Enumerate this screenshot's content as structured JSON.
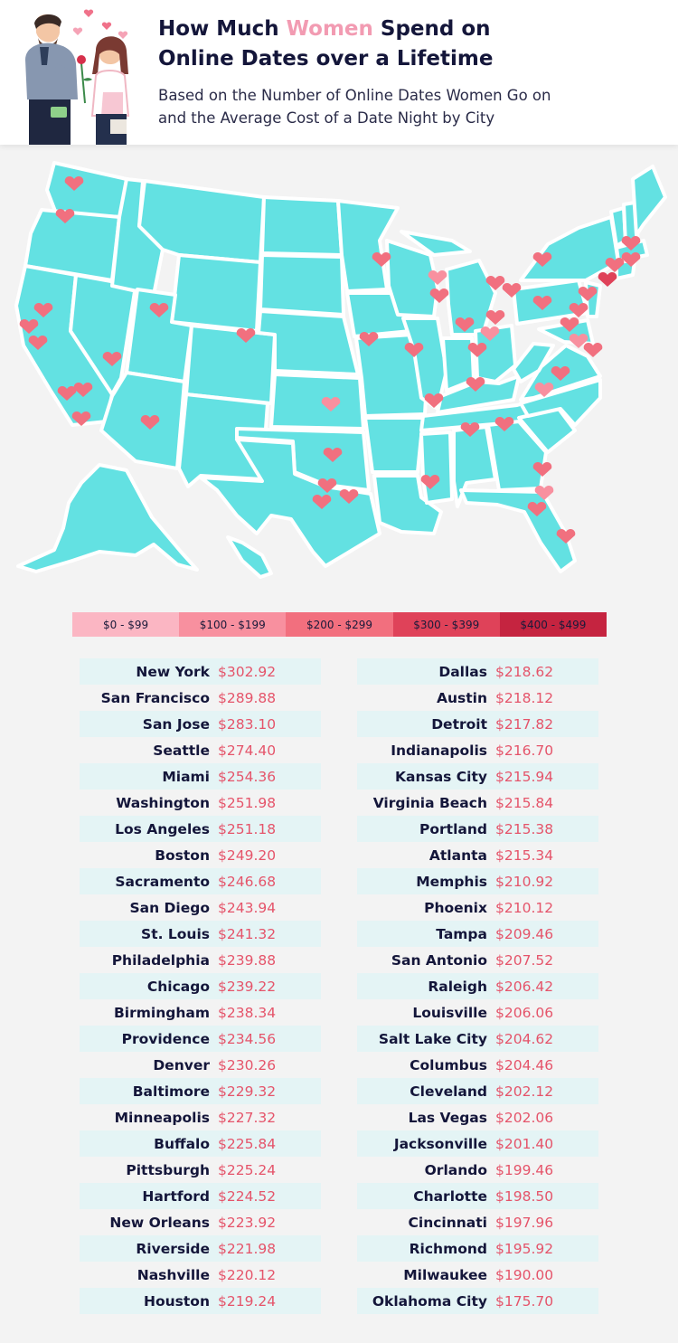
{
  "header": {
    "title_part1": "How Much ",
    "title_accent": "Women",
    "title_part2": " Spend on",
    "title_line2": "Online Dates over a Lifetime",
    "subtitle_line1": "Based on the Number of Online Dates Women Go on",
    "subtitle_line2": "and the Average Cost of a Date Night by City"
  },
  "colors": {
    "map_fill": "#63e1e2",
    "heart_light": "#f7a9b9",
    "heart_mid": "#f1707f",
    "heart_dark": "#cf3050",
    "price_text": "#e5546a",
    "row_shade": "#e4f4f5"
  },
  "legend": [
    {
      "label": "$0 - $99",
      "color": "#fbb6c3"
    },
    {
      "label": "$100 - $199",
      "color": "#f8909f"
    },
    {
      "label": "$200 - $299",
      "color": "#f26f7e"
    },
    {
      "label": "$300 - $399",
      "color": "#df4259"
    },
    {
      "label": "$400 - $499",
      "color": "#c52440"
    }
  ],
  "left_table": [
    {
      "city": "New York",
      "price": "$302.92"
    },
    {
      "city": "San Francisco",
      "price": "$289.88"
    },
    {
      "city": "San Jose",
      "price": "$283.10"
    },
    {
      "city": "Seattle",
      "price": "$274.40"
    },
    {
      "city": "Miami",
      "price": "$254.36"
    },
    {
      "city": "Washington",
      "price": "$251.98"
    },
    {
      "city": "Los Angeles",
      "price": "$251.18"
    },
    {
      "city": "Boston",
      "price": "$249.20"
    },
    {
      "city": "Sacramento",
      "price": "$246.68"
    },
    {
      "city": "San Diego",
      "price": "$243.94"
    },
    {
      "city": "St. Louis",
      "price": "$241.32"
    },
    {
      "city": "Philadelphia",
      "price": "$239.88"
    },
    {
      "city": "Chicago",
      "price": "$239.22"
    },
    {
      "city": "Birmingham",
      "price": "$238.34"
    },
    {
      "city": "Providence",
      "price": "$234.56"
    },
    {
      "city": "Denver",
      "price": "$230.26"
    },
    {
      "city": "Baltimore",
      "price": "$229.32"
    },
    {
      "city": "Minneapolis",
      "price": "$227.32"
    },
    {
      "city": "Buffalo",
      "price": "$225.84"
    },
    {
      "city": "Pittsburgh",
      "price": "$225.24"
    },
    {
      "city": "Hartford",
      "price": "$224.52"
    },
    {
      "city": "New Orleans",
      "price": "$223.92"
    },
    {
      "city": "Riverside",
      "price": "$221.98"
    },
    {
      "city": "Nashville",
      "price": "$220.12"
    },
    {
      "city": "Houston",
      "price": "$219.24"
    }
  ],
  "right_table": [
    {
      "city": "Dallas",
      "price": "$218.62"
    },
    {
      "city": "Austin",
      "price": "$218.12"
    },
    {
      "city": "Detroit",
      "price": "$217.82"
    },
    {
      "city": "Indianapolis",
      "price": "$216.70"
    },
    {
      "city": "Kansas City",
      "price": "$215.94"
    },
    {
      "city": "Virginia Beach",
      "price": "$215.84"
    },
    {
      "city": "Portland",
      "price": "$215.38"
    },
    {
      "city": "Atlanta",
      "price": "$215.34"
    },
    {
      "city": "Memphis",
      "price": "$210.92"
    },
    {
      "city": "Phoenix",
      "price": "$210.12"
    },
    {
      "city": "Tampa",
      "price": "$209.46"
    },
    {
      "city": "San Antonio",
      "price": "$207.52"
    },
    {
      "city": "Raleigh",
      "price": "$206.42"
    },
    {
      "city": "Louisville",
      "price": "$206.06"
    },
    {
      "city": "Salt Lake City",
      "price": "$204.62"
    },
    {
      "city": "Columbus",
      "price": "$204.46"
    },
    {
      "city": "Cleveland",
      "price": "$202.12"
    },
    {
      "city": "Las Vegas",
      "price": "$202.06"
    },
    {
      "city": "Jacksonville",
      "price": "$201.40"
    },
    {
      "city": "Orlando",
      "price": "$199.46"
    },
    {
      "city": "Charlotte",
      "price": "$198.50"
    },
    {
      "city": "Cincinnati",
      "price": "$197.96"
    },
    {
      "city": "Richmond",
      "price": "$195.92"
    },
    {
      "city": "Milwaukee",
      "price": "$190.00"
    },
    {
      "city": "Oklahoma City",
      "price": "$175.70"
    }
  ]
}
